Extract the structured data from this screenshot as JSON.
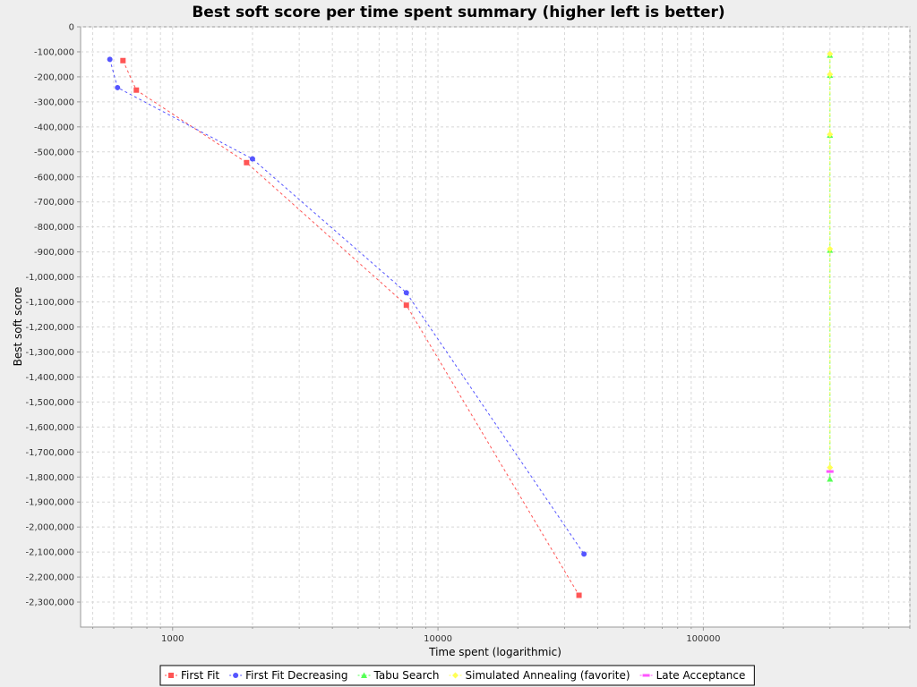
{
  "chart_data": {
    "type": "scatter",
    "title": "Best soft score per time spent summary (higher left is better)",
    "xlabel": "Time spent (logarithmic)",
    "ylabel": "Best soft score",
    "x_scale": "log",
    "xlim": [
      450,
      600000
    ],
    "ylim": [
      -2400000,
      0
    ],
    "x_ticks": [
      1000,
      10000,
      100000
    ],
    "x_tick_labels": [
      "1000",
      "10000",
      "100000"
    ],
    "y_ticks": [
      0,
      -100000,
      -200000,
      -300000,
      -400000,
      -500000,
      -600000,
      -700000,
      -800000,
      -900000,
      -1000000,
      -1100000,
      -1200000,
      -1300000,
      -1400000,
      -1500000,
      -1600000,
      -1700000,
      -1800000,
      -1900000,
      -2000000,
      -2100000,
      -2200000,
      -2300000
    ],
    "y_tick_labels": [
      "0",
      "-100,000",
      "-200,000",
      "-300,000",
      "-400,000",
      "-500,000",
      "-600,000",
      "-700,000",
      "-800,000",
      "-900,000",
      "-1,000,000",
      "-1,100,000",
      "-1,200,000",
      "-1,300,000",
      "-1,400,000",
      "-1,500,000",
      "-1,600,000",
      "-1,700,000",
      "-1,800,000",
      "-1,900,000",
      "-2,000,000",
      "-2,100,000",
      "-2,200,000",
      "-2,300,000"
    ],
    "grid": true,
    "legend_position": "bottom",
    "series": [
      {
        "name": "First Fit",
        "color": "#ff5555",
        "marker": "square",
        "points": [
          {
            "x": 650,
            "y": -135000
          },
          {
            "x": 730,
            "y": -253000
          },
          {
            "x": 1900,
            "y": -543000
          },
          {
            "x": 7600,
            "y": -1113000
          },
          {
            "x": 34000,
            "y": -2273000
          }
        ]
      },
      {
        "name": "First Fit Decreasing",
        "color": "#5555ff",
        "marker": "circle",
        "points": [
          {
            "x": 580,
            "y": -130000
          },
          {
            "x": 620,
            "y": -243000
          },
          {
            "x": 2000,
            "y": -528000
          },
          {
            "x": 7600,
            "y": -1063000
          },
          {
            "x": 35500,
            "y": -2108000
          }
        ]
      },
      {
        "name": "Tabu Search",
        "color": "#55ff55",
        "marker": "triangle",
        "points": [
          {
            "x": 300000,
            "y": -113000
          },
          {
            "x": 300000,
            "y": -193000
          },
          {
            "x": 300000,
            "y": -433000
          },
          {
            "x": 300000,
            "y": -893000
          },
          {
            "x": 300000,
            "y": -1808000
          }
        ]
      },
      {
        "name": "Simulated Annealing (favorite)",
        "color": "#ffff55",
        "marker": "diamond",
        "points": [
          {
            "x": 300000,
            "y": -108000
          },
          {
            "x": 300000,
            "y": -190000
          },
          {
            "x": 300000,
            "y": -430000
          },
          {
            "x": 300000,
            "y": -888000
          },
          {
            "x": 300000,
            "y": -1762000
          }
        ]
      },
      {
        "name": "Late Acceptance",
        "color": "#ff55ff",
        "marker": "bar",
        "points": [
          {
            "x": 300000,
            "y": -1778000
          }
        ]
      }
    ]
  }
}
